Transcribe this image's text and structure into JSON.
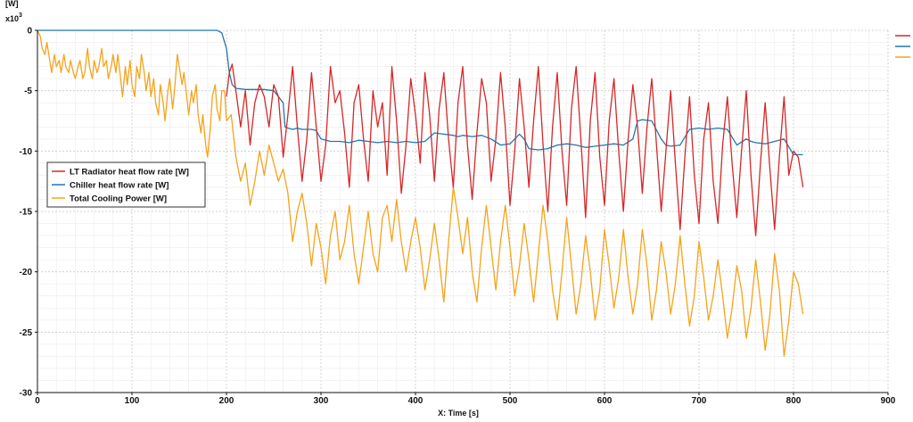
{
  "chart_data": {
    "type": "line",
    "ylabel": "[W]",
    "y_multiplier_base": "x10",
    "y_multiplier_exp": "3",
    "xlabel": "X: Time [s]",
    "xlim": [
      0,
      900
    ],
    "ylim": [
      -30,
      0
    ],
    "x_ticks": [
      0,
      100,
      200,
      300,
      400,
      500,
      600,
      700,
      800,
      900
    ],
    "y_ticks": [
      0,
      -5,
      -10,
      -15,
      -20,
      -25,
      -30
    ],
    "x_tick_labels": [
      "0",
      "100",
      "200",
      "300",
      "400",
      "500",
      "600",
      "700",
      "800",
      "900"
    ],
    "y_tick_labels": [
      "0",
      "-5",
      "-10",
      "-15",
      "-20",
      "-25",
      "-30"
    ],
    "grid": true,
    "legend_position": "left-middle",
    "series": [
      {
        "name": "LT Radiator heat flow rate [W]",
        "color": "#d62728",
        "x": [
          200,
          203,
          206,
          210,
          215,
          220,
          225,
          230,
          235,
          240,
          245,
          250,
          255,
          260,
          265,
          270,
          275,
          280,
          285,
          290,
          295,
          300,
          305,
          310,
          315,
          320,
          325,
          330,
          335,
          340,
          345,
          350,
          355,
          360,
          365,
          370,
          375,
          380,
          385,
          390,
          395,
          400,
          405,
          410,
          415,
          420,
          425,
          430,
          435,
          440,
          445,
          450,
          455,
          460,
          465,
          470,
          475,
          480,
          485,
          490,
          495,
          500,
          505,
          510,
          515,
          520,
          525,
          530,
          535,
          540,
          545,
          550,
          555,
          560,
          565,
          570,
          575,
          580,
          585,
          590,
          595,
          600,
          605,
          610,
          615,
          620,
          625,
          630,
          635,
          640,
          645,
          650,
          655,
          660,
          665,
          670,
          675,
          680,
          685,
          690,
          695,
          700,
          705,
          710,
          715,
          720,
          725,
          730,
          735,
          740,
          745,
          750,
          755,
          760,
          765,
          770,
          775,
          780,
          785,
          790,
          795,
          800,
          805,
          810
        ],
        "values": [
          -5.5,
          -3.5,
          -2.8,
          -5.0,
          -8.0,
          -5.0,
          -9.5,
          -6.0,
          -4.5,
          -5.5,
          -8.0,
          -4.5,
          -5.5,
          -10.5,
          -7.0,
          -3.0,
          -8.0,
          -12.5,
          -9.0,
          -3.5,
          -8.0,
          -12.5,
          -9.5,
          -3.0,
          -6.0,
          -5.0,
          -8.5,
          -13.0,
          -6.0,
          -4.5,
          -9.0,
          -12.5,
          -5.0,
          -8.0,
          -6.0,
          -12.0,
          -3.0,
          -7.5,
          -13.5,
          -9.5,
          -4.0,
          -7.0,
          -11.0,
          -3.5,
          -7.0,
          -12.5,
          -6.5,
          -3.5,
          -9.0,
          -13.0,
          -6.0,
          -3.0,
          -9.5,
          -14.0,
          -8.5,
          -4.0,
          -6.0,
          -12.5,
          -9.0,
          -3.5,
          -8.0,
          -14.5,
          -10.0,
          -4.0,
          -8.0,
          -13.0,
          -7.5,
          -3.0,
          -9.5,
          -15.0,
          -8.0,
          -3.5,
          -10.0,
          -14.5,
          -6.5,
          -3.0,
          -9.0,
          -15.5,
          -7.5,
          -3.5,
          -10.5,
          -14.5,
          -7.5,
          -4.0,
          -10.0,
          -15.0,
          -9.0,
          -4.5,
          -8.0,
          -13.5,
          -8.0,
          -4.0,
          -9.5,
          -15.0,
          -10.0,
          -5.0,
          -11.0,
          -16.5,
          -10.5,
          -5.5,
          -12.0,
          -16.0,
          -9.0,
          -6.0,
          -12.5,
          -16.0,
          -9.5,
          -5.5,
          -11.0,
          -15.5,
          -10.0,
          -5.0,
          -12.0,
          -17.0,
          -11.0,
          -6.0,
          -11.5,
          -16.5,
          -10.5,
          -5.5,
          -12.0,
          -10.0,
          -10.5,
          -13.0
        ]
      },
      {
        "name": "Chiller heat flow rate [W]",
        "color": "#1f77b4",
        "x": [
          0,
          50,
          100,
          150,
          185,
          190,
          195,
          200,
          203,
          206,
          210,
          220,
          230,
          240,
          250,
          255,
          260,
          262,
          265,
          270,
          275,
          280,
          285,
          290,
          295,
          300,
          310,
          320,
          330,
          340,
          350,
          360,
          370,
          380,
          390,
          400,
          410,
          420,
          430,
          440,
          445,
          450,
          460,
          470,
          480,
          490,
          500,
          510,
          515,
          520,
          530,
          540,
          550,
          560,
          570,
          580,
          590,
          600,
          610,
          620,
          630,
          635,
          640,
          650,
          660,
          665,
          670,
          680,
          690,
          700,
          710,
          720,
          730,
          740,
          750,
          755,
          760,
          770,
          780,
          790,
          800,
          805,
          810
        ],
        "values": [
          0,
          0,
          0,
          0,
          0,
          0,
          -0.2,
          -1.5,
          -3.5,
          -4.5,
          -4.8,
          -4.9,
          -4.9,
          -4.9,
          -5.0,
          -5.5,
          -6.0,
          -8.0,
          -8.1,
          -8.2,
          -8.1,
          -8.2,
          -8.2,
          -8.2,
          -8.3,
          -9.0,
          -9.2,
          -9.2,
          -9.3,
          -9.1,
          -9.2,
          -9.3,
          -9.2,
          -9.3,
          -9.2,
          -9.3,
          -9.2,
          -8.5,
          -8.6,
          -8.7,
          -8.8,
          -8.7,
          -8.8,
          -8.7,
          -9.0,
          -9.5,
          -9.4,
          -8.6,
          -9.0,
          -9.8,
          -9.9,
          -9.8,
          -9.5,
          -9.4,
          -9.5,
          -9.7,
          -9.6,
          -9.5,
          -9.4,
          -9.5,
          -9.0,
          -7.5,
          -7.4,
          -7.5,
          -9.0,
          -9.5,
          -9.6,
          -9.5,
          -8.2,
          -8.1,
          -8.2,
          -8.1,
          -8.2,
          -9.5,
          -9.0,
          -9.2,
          -9.3,
          -9.4,
          -9.2,
          -9.0,
          -10.3,
          -10.3,
          -10.3
        ]
      },
      {
        "name": "Total Cooling Power [W]",
        "color": "#f5a31a",
        "x": [
          0,
          3,
          5,
          8,
          10,
          13,
          15,
          18,
          20,
          23,
          25,
          28,
          30,
          33,
          35,
          38,
          40,
          43,
          45,
          48,
          50,
          53,
          55,
          58,
          60,
          63,
          65,
          68,
          70,
          73,
          75,
          78,
          80,
          83,
          85,
          88,
          90,
          93,
          95,
          98,
          100,
          103,
          105,
          108,
          110,
          113,
          115,
          118,
          120,
          123,
          125,
          128,
          130,
          133,
          135,
          138,
          140,
          143,
          145,
          148,
          150,
          153,
          155,
          158,
          160,
          163,
          165,
          168,
          170,
          173,
          175,
          178,
          180,
          183,
          185,
          188,
          190,
          193,
          195,
          198,
          200,
          205,
          210,
          215,
          220,
          225,
          230,
          235,
          240,
          245,
          250,
          255,
          260,
          265,
          270,
          275,
          280,
          285,
          290,
          295,
          300,
          305,
          310,
          315,
          320,
          325,
          330,
          335,
          340,
          345,
          350,
          355,
          360,
          365,
          370,
          375,
          380,
          385,
          390,
          395,
          400,
          405,
          410,
          415,
          420,
          425,
          430,
          435,
          440,
          445,
          450,
          455,
          460,
          465,
          470,
          475,
          480,
          485,
          490,
          495,
          500,
          505,
          510,
          515,
          520,
          525,
          530,
          535,
          540,
          545,
          550,
          555,
          560,
          565,
          570,
          575,
          580,
          585,
          590,
          595,
          600,
          605,
          610,
          615,
          620,
          625,
          630,
          635,
          640,
          645,
          650,
          655,
          660,
          665,
          670,
          675,
          680,
          685,
          690,
          695,
          700,
          705,
          710,
          715,
          720,
          725,
          730,
          735,
          740,
          745,
          750,
          755,
          760,
          765,
          770,
          775,
          780,
          785,
          790,
          795,
          800,
          805,
          810
        ],
        "values": [
          0,
          -0.5,
          -1.5,
          -2.0,
          -1.0,
          -2.5,
          -3.5,
          -2.0,
          -3.0,
          -2.5,
          -3.5,
          -2.0,
          -3.0,
          -3.5,
          -2.5,
          -3.5,
          -4.0,
          -3.0,
          -2.5,
          -4.0,
          -3.5,
          -1.5,
          -3.0,
          -4.0,
          -2.5,
          -3.5,
          -3.0,
          -1.5,
          -3.0,
          -2.5,
          -4.0,
          -3.0,
          -2.0,
          -3.5,
          -2.0,
          -4.0,
          -5.5,
          -3.0,
          -4.5,
          -2.5,
          -4.5,
          -5.5,
          -3.0,
          -4.0,
          -2.0,
          -3.5,
          -5.0,
          -3.5,
          -5.5,
          -4.0,
          -6.0,
          -7.0,
          -4.5,
          -6.0,
          -7.5,
          -5.0,
          -4.0,
          -6.5,
          -5.0,
          -2.0,
          -3.0,
          -4.5,
          -3.5,
          -5.5,
          -7.0,
          -5.0,
          -6.0,
          -4.5,
          -7.0,
          -8.5,
          -7.0,
          -9.5,
          -10.5,
          -8.0,
          -5.5,
          -4.5,
          -6.5,
          -7.5,
          -5.0,
          -5.0,
          -7.5,
          -7.0,
          -10.5,
          -12.5,
          -11.0,
          -14.5,
          -12.5,
          -10.0,
          -12.0,
          -9.5,
          -11.0,
          -12.5,
          -11.5,
          -13.5,
          -17.5,
          -15.0,
          -13.5,
          -16.0,
          -19.5,
          -16.0,
          -18.0,
          -21.0,
          -17.0,
          -15.0,
          -19.0,
          -17.5,
          -14.5,
          -18.5,
          -21.0,
          -18.0,
          -15.0,
          -18.5,
          -20.0,
          -15.5,
          -14.5,
          -17.5,
          -14.0,
          -17.5,
          -20.0,
          -17.5,
          -15.5,
          -18.0,
          -21.5,
          -19.0,
          -16.0,
          -19.0,
          -22.5,
          -17.5,
          -13.0,
          -15.5,
          -18.5,
          -15.5,
          -20.0,
          -22.5,
          -18.0,
          -14.5,
          -18.0,
          -21.5,
          -17.5,
          -14.5,
          -18.0,
          -22.0,
          -19.5,
          -16.0,
          -19.0,
          -22.5,
          -18.5,
          -14.5,
          -17.5,
          -21.5,
          -24.0,
          -20.0,
          -15.5,
          -19.5,
          -23.5,
          -21.0,
          -17.0,
          -20.0,
          -24.0,
          -21.5,
          -16.5,
          -19.5,
          -23.0,
          -20.5,
          -16.5,
          -20.5,
          -23.5,
          -21.0,
          -16.5,
          -19.5,
          -24.0,
          -21.5,
          -17.5,
          -20.0,
          -23.5,
          -21.0,
          -17.0,
          -21.0,
          -24.5,
          -22.0,
          -17.5,
          -20.5,
          -24.0,
          -22.0,
          -19.0,
          -22.0,
          -25.5,
          -23.0,
          -19.5,
          -21.5,
          -25.5,
          -23.0,
          -19.0,
          -22.5,
          -26.5,
          -23.5,
          -18.5,
          -21.5,
          -27.0,
          -24.0,
          -20.0,
          -21.0,
          -23.5
        ]
      }
    ]
  }
}
